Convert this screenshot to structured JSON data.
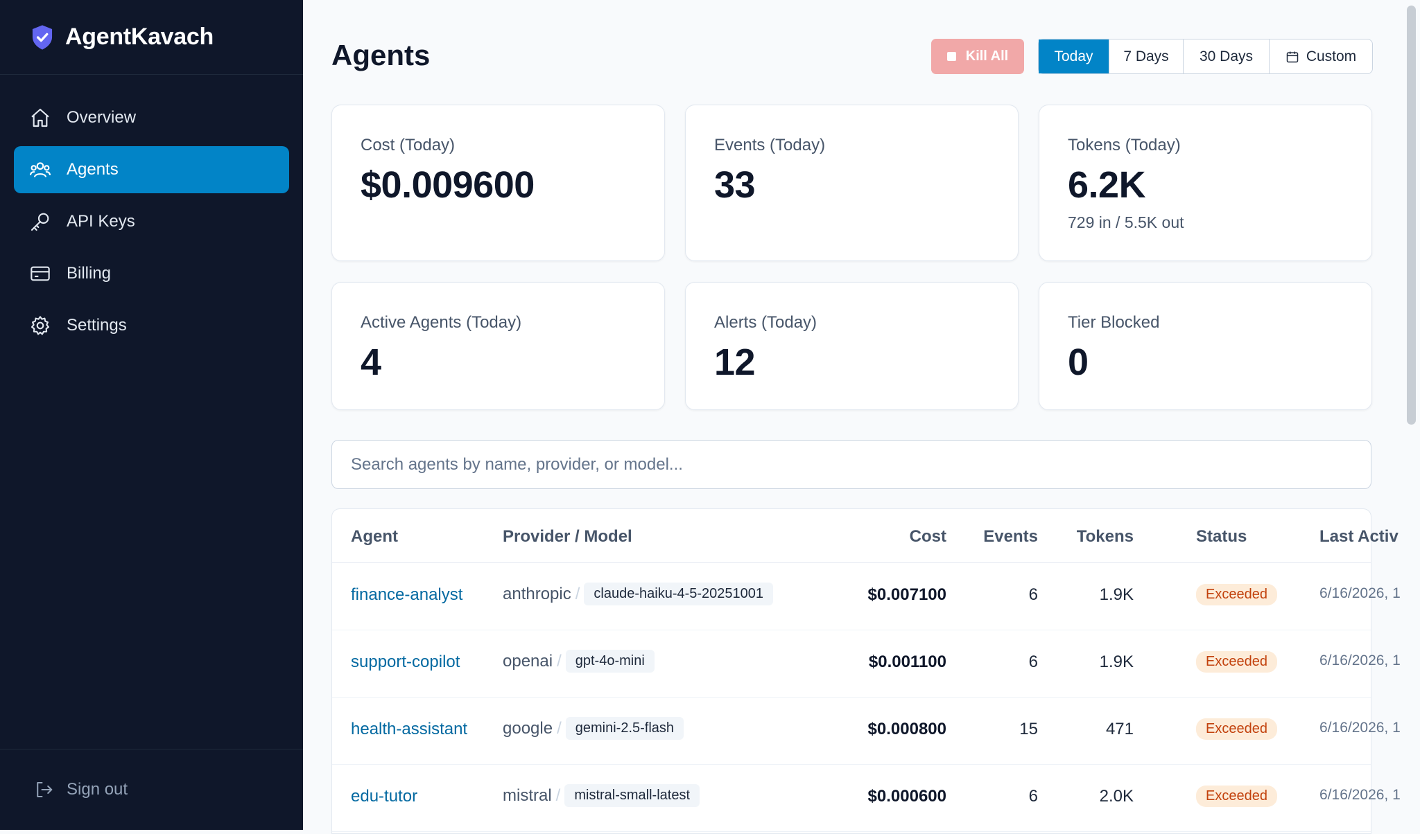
{
  "app": {
    "name": "AgentKavach"
  },
  "sidebar": {
    "items": [
      {
        "label": "Overview",
        "icon": "home-icon"
      },
      {
        "label": "Agents",
        "icon": "users-icon",
        "active": true
      },
      {
        "label": "API Keys",
        "icon": "key-icon"
      },
      {
        "label": "Billing",
        "icon": "credit-card-icon"
      },
      {
        "label": "Settings",
        "icon": "gear-icon"
      }
    ],
    "signout_label": "Sign out"
  },
  "header": {
    "title": "Agents",
    "kill_label": "Kill All",
    "ranges": [
      "Today",
      "7 Days",
      "30 Days",
      "Custom"
    ],
    "active_range": "Today"
  },
  "stats": [
    {
      "label": "Cost (Today)",
      "value": "$0.009600",
      "sub": ""
    },
    {
      "label": "Events (Today)",
      "value": "33",
      "sub": ""
    },
    {
      "label": "Tokens (Today)",
      "value": "6.2K",
      "sub": "729 in / 5.5K out"
    },
    {
      "label": "Active Agents (Today)",
      "value": "4",
      "sub": ""
    },
    {
      "label": "Alerts (Today)",
      "value": "12",
      "sub": ""
    },
    {
      "label": "Tier Blocked",
      "value": "0",
      "sub": ""
    }
  ],
  "search": {
    "placeholder": "Search agents by name, provider, or model..."
  },
  "table": {
    "headers": [
      "Agent",
      "Provider / Model",
      "Cost",
      "Events",
      "Tokens",
      "Status",
      "Last Activ"
    ],
    "rows": [
      {
        "agent": "finance-analyst",
        "provider": "anthropic",
        "model": "claude-haiku-4-5-20251001",
        "cost": "$0.007100",
        "events": "6",
        "tokens": "1.9K",
        "status": "Exceeded",
        "last": "6/16/2026, 1"
      },
      {
        "agent": "support-copilot",
        "provider": "openai",
        "model": "gpt-4o-mini",
        "cost": "$0.001100",
        "events": "6",
        "tokens": "1.9K",
        "status": "Exceeded",
        "last": "6/16/2026, 1"
      },
      {
        "agent": "health-assistant",
        "provider": "google",
        "model": "gemini-2.5-flash",
        "cost": "$0.000800",
        "events": "15",
        "tokens": "471",
        "status": "Exceeded",
        "last": "6/16/2026, 1"
      },
      {
        "agent": "edu-tutor",
        "provider": "mistral",
        "model": "mistral-small-latest",
        "cost": "$0.000600",
        "events": "6",
        "tokens": "2.0K",
        "status": "Exceeded",
        "last": "6/16/2026, 1"
      }
    ]
  },
  "colors": {
    "sidebar_bg": "#0f172a",
    "accent": "#0284c7",
    "kill": "#f1a8a8",
    "badge_bg": "#fdecd9",
    "badge_text": "#c2410c"
  }
}
